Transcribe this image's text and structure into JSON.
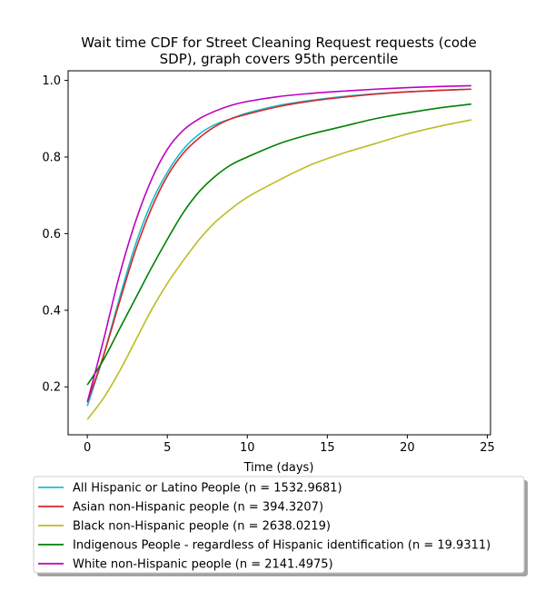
{
  "chart_data": {
    "type": "line",
    "title_lines": [
      "Wait time CDF for Street Cleaning Request  requests (code",
      "SDP), graph covers 95th percentile"
    ],
    "xlabel": "Time (days)",
    "ylabel": "",
    "xlim": [
      -1.2,
      25.2
    ],
    "ylim": [
      0.075,
      1.025
    ],
    "xticks": [
      0,
      5,
      10,
      15,
      20,
      25
    ],
    "yticks": [
      0.2,
      0.4,
      0.6,
      0.8,
      1.0
    ],
    "xtick_labels": [
      "0",
      "5",
      "10",
      "15",
      "20",
      "25"
    ],
    "ytick_labels": [
      "0.2",
      "0.4",
      "0.6",
      "0.8",
      "1.0"
    ],
    "grid": false,
    "legend_position": "below",
    "series": [
      {
        "name": "All Hispanic or Latino People (n = 1532.9681)",
        "color": "#17becf",
        "x": [
          0,
          1,
          2,
          3,
          4,
          5,
          6,
          7,
          8,
          9,
          10,
          12,
          14,
          16,
          18,
          20,
          22,
          24
        ],
        "y": [
          0.15,
          0.28,
          0.43,
          0.57,
          0.68,
          0.76,
          0.82,
          0.86,
          0.885,
          0.9,
          0.915,
          0.935,
          0.948,
          0.958,
          0.965,
          0.97,
          0.974,
          0.977
        ]
      },
      {
        "name": "Asian non-Hispanic people (n = 394.3207)",
        "color": "#d62728",
        "x": [
          0,
          1,
          2,
          3,
          4,
          5,
          6,
          7,
          8,
          9,
          10,
          12,
          14,
          16,
          18,
          20,
          22,
          24
        ],
        "y": [
          0.16,
          0.28,
          0.42,
          0.555,
          0.665,
          0.75,
          0.81,
          0.85,
          0.88,
          0.9,
          0.912,
          0.932,
          0.946,
          0.956,
          0.964,
          0.97,
          0.974,
          0.977
        ]
      },
      {
        "name": "Black non-Hispanic people (n = 2638.0219)",
        "color": "#bcbd22",
        "x": [
          0,
          1,
          2,
          3,
          4,
          5,
          6,
          7,
          8,
          9,
          10,
          12,
          14,
          16,
          18,
          20,
          22,
          24
        ],
        "y": [
          0.115,
          0.17,
          0.24,
          0.32,
          0.4,
          0.47,
          0.53,
          0.585,
          0.63,
          0.665,
          0.695,
          0.74,
          0.78,
          0.81,
          0.835,
          0.86,
          0.88,
          0.897
        ]
      },
      {
        "name": "Indigenous People - regardless of Hispanic identification (n = 19.9311)",
        "color": "#008000",
        "x": [
          0,
          1,
          2,
          3,
          4,
          5,
          6,
          7,
          8,
          9,
          10,
          12,
          14,
          16,
          18,
          20,
          22,
          24
        ],
        "y": [
          0.205,
          0.27,
          0.35,
          0.43,
          0.51,
          0.585,
          0.655,
          0.71,
          0.75,
          0.78,
          0.8,
          0.835,
          0.86,
          0.88,
          0.9,
          0.915,
          0.928,
          0.938
        ]
      },
      {
        "name": "White non-Hispanic people (n = 2141.4975)",
        "color": "#bf00bf",
        "x": [
          0,
          1,
          2,
          3,
          4,
          5,
          6,
          7,
          8,
          9,
          10,
          12,
          14,
          16,
          18,
          20,
          22,
          24
        ],
        "y": [
          0.16,
          0.32,
          0.49,
          0.63,
          0.74,
          0.82,
          0.87,
          0.9,
          0.92,
          0.935,
          0.945,
          0.958,
          0.966,
          0.972,
          0.977,
          0.981,
          0.984,
          0.986
        ]
      }
    ]
  }
}
